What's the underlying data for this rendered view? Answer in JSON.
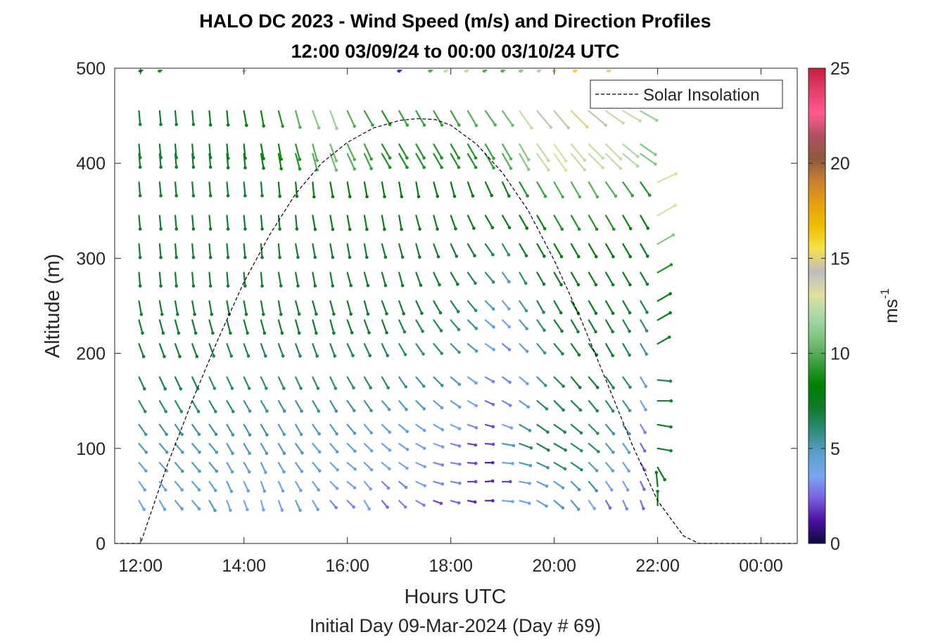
{
  "chart_data": {
    "type": "quiver",
    "title_line1": "HALO DC 2023 - Wind Speed (m/s) and Direction Profiles",
    "title_line2": "12:00 03/09/24 to 00:00 03/10/24  UTC",
    "xlabel": "Hours UTC",
    "ylabel": "Altitude (m)",
    "caption": "Initial Day 09-Mar-2024 (Day # 69)",
    "x_ticks": [
      "12:00",
      "14:00",
      "16:00",
      "18:00",
      "20:00",
      "22:00",
      "00:00"
    ],
    "x_tick_hours": [
      12,
      14,
      16,
      18,
      20,
      22,
      24
    ],
    "xlim": [
      11.5,
      24.7
    ],
    "ylim": [
      0,
      500
    ],
    "y_ticks": [
      "0",
      "100",
      "200",
      "300",
      "400",
      "500"
    ],
    "y_tick_values": [
      0,
      100,
      200,
      300,
      400,
      500
    ],
    "legend": {
      "entries": [
        "Solar Insolation"
      ],
      "location": "top-right"
    },
    "colorbar": {
      "label_base": "ms",
      "label_exp": "-1",
      "ticks": [
        "0",
        "5",
        "10",
        "15",
        "20",
        "25"
      ],
      "tick_values": [
        0,
        5,
        10,
        15,
        20,
        25
      ],
      "range": [
        0,
        25
      ],
      "colors": [
        "#0a0a40",
        "#4b0fa0",
        "#7b5fe0",
        "#7aa6f0",
        "#5a9ec8",
        "#2e8b7a",
        "#0f7a2a",
        "#008000",
        "#3aa040",
        "#7cc07c",
        "#a8d8a8",
        "#e0e0a0",
        "#bdbdbd",
        "#f5e050",
        "#f0c000",
        "#e8a010",
        "#c88030",
        "#8b5a3c",
        "#b05060",
        "#ff5a8c",
        "#e0406a",
        "#c81e3c"
      ]
    },
    "solar_insolation": {
      "x": [
        11.5,
        12.0,
        12.5,
        13.0,
        13.5,
        14.0,
        14.5,
        15.0,
        15.5,
        16.0,
        16.5,
        17.0,
        17.35,
        17.7,
        18.0,
        18.5,
        19.0,
        19.5,
        20.0,
        20.5,
        21.0,
        21.5,
        22.0,
        22.5,
        22.8,
        23.0,
        24.7
      ],
      "y": [
        0,
        0,
        80,
        150,
        215,
        275,
        325,
        368,
        400,
        422,
        437,
        445,
        447,
        446,
        440,
        420,
        390,
        350,
        298,
        238,
        172,
        105,
        45,
        8,
        0,
        0,
        0
      ]
    },
    "wind_columns": {
      "times": [
        11.97,
        12.37,
        12.67,
        13.0,
        13.33,
        13.67,
        14.0,
        14.33,
        14.67,
        15.0,
        15.33,
        15.67,
        16.0,
        16.33,
        16.67,
        17.0,
        17.33,
        17.67,
        18.0,
        18.33,
        18.67,
        19.0,
        19.33,
        19.67,
        20.0,
        20.33,
        20.67,
        21.0,
        21.33,
        21.67
      ],
      "altitudes": [
        45,
        65,
        85,
        105,
        125,
        150,
        175,
        210,
        235,
        255,
        285,
        315,
        345,
        380,
        410,
        420,
        455
      ],
      "wind_speed_by_altitude": [
        [
          4,
          4,
          4.5,
          4.5,
          5,
          4,
          3.5,
          3.5,
          4,
          4.5,
          4,
          3,
          3,
          3.5,
          2.5,
          3,
          3,
          2,
          2.5,
          1.5,
          1.5,
          4,
          4,
          4.5,
          5,
          5,
          3.5,
          2.5,
          3,
          2.5
        ],
        [
          4,
          4,
          4.5,
          4.5,
          4.5,
          4.5,
          4,
          4,
          4,
          4,
          4,
          3.5,
          3.5,
          3.5,
          3,
          3,
          3.5,
          3,
          3,
          2,
          1.5,
          2,
          4,
          4.5,
          4.5,
          5,
          5.5,
          4,
          3.5,
          2.5
        ],
        [
          4.5,
          4.5,
          5,
          5,
          5,
          4.5,
          4.5,
          4.5,
          4.5,
          4.5,
          4.5,
          4,
          4,
          4,
          3.5,
          3.5,
          3.5,
          3,
          3,
          2,
          1.5,
          4,
          5,
          5.5,
          6,
          6,
          5,
          4.5,
          4,
          2.5
        ],
        [
          5,
          5,
          5,
          5,
          5,
          5,
          5,
          5,
          5,
          5,
          4.5,
          4.5,
          4.5,
          4,
          4,
          4,
          3.5,
          3.5,
          3,
          2,
          2,
          5,
          6,
          6.5,
          6.5,
          6,
          6,
          5,
          4.5,
          2.5
        ],
        [
          5.5,
          5.5,
          5.5,
          5.5,
          5.5,
          5.5,
          5.5,
          5.5,
          5,
          5,
          5,
          5,
          5,
          4.5,
          4.5,
          4.5,
          4,
          4,
          3.5,
          3,
          2,
          3.5,
          5.5,
          6.5,
          6.5,
          6.5,
          6,
          5.5,
          5,
          3
        ],
        [
          6,
          6,
          6,
          6,
          6,
          6,
          5.5,
          5.5,
          5.5,
          5.5,
          5.5,
          5.5,
          5.5,
          5.5,
          5,
          5,
          5,
          4.5,
          4.5,
          3.5,
          2.5,
          3,
          4.5,
          6,
          6.5,
          6.5,
          6.5,
          6,
          5.5,
          4
        ],
        [
          6.5,
          6.5,
          6.5,
          6.5,
          6,
          6,
          6,
          6,
          6,
          6,
          6,
          6,
          6,
          6,
          6,
          5.5,
          5.5,
          5.5,
          5,
          4,
          3,
          3,
          4,
          5.5,
          6.5,
          7,
          7,
          6.5,
          6,
          4.5
        ],
        [
          7,
          7,
          7,
          7,
          6.5,
          6.5,
          6.5,
          6.5,
          6.5,
          6.5,
          6.5,
          6.5,
          6.5,
          6.5,
          6.5,
          6,
          6,
          6,
          5.5,
          5,
          4,
          3,
          4.5,
          5.5,
          6.5,
          7,
          7,
          7,
          6.5,
          5.5
        ],
        [
          7,
          7,
          7,
          7,
          7,
          7,
          7,
          7,
          7,
          7,
          7,
          7,
          7,
          7,
          7,
          6.5,
          6.5,
          6.5,
          6,
          5.5,
          4.5,
          3.5,
          5,
          6,
          7,
          7,
          7,
          7,
          6.5,
          6
        ],
        [
          7,
          7,
          7,
          7,
          7,
          7,
          7,
          7,
          7,
          7,
          7,
          7,
          7,
          7,
          7,
          7,
          7,
          7,
          6.5,
          6,
          5,
          4,
          5.5,
          6.5,
          7,
          7.5,
          7.5,
          7.5,
          7,
          6.5
        ],
        [
          7,
          7,
          7,
          7,
          7,
          7,
          7,
          7,
          7,
          7,
          7,
          7,
          7,
          7,
          7,
          7,
          7,
          7,
          7,
          6.5,
          6,
          5,
          6,
          7,
          7.5,
          7.5,
          7.5,
          7.5,
          7.5,
          7
        ],
        [
          7,
          7,
          7,
          7,
          7,
          7,
          7,
          7,
          7,
          7,
          7,
          7,
          7,
          7,
          7,
          7,
          7,
          7,
          7,
          7,
          6.5,
          6,
          7,
          7.5,
          8,
          8,
          8,
          8,
          8,
          7.5
        ],
        [
          7,
          7,
          7,
          7,
          7,
          7,
          7,
          7,
          7,
          7,
          7.5,
          7.5,
          7.5,
          7.5,
          7.5,
          7.5,
          7.5,
          7.5,
          7.5,
          7.5,
          7.5,
          7.5,
          8,
          8.5,
          9,
          9,
          9,
          9,
          8.5,
          8
        ],
        [
          7,
          7,
          7,
          7,
          7,
          7,
          7,
          7,
          7.5,
          7.5,
          8,
          8,
          8,
          8,
          8,
          8,
          8,
          8,
          8,
          8,
          8,
          8.5,
          9,
          9.5,
          10,
          10,
          10,
          10,
          9.5,
          9
        ],
        [
          7,
          7,
          7,
          7,
          7,
          7.5,
          7.5,
          8,
          8.5,
          9,
          10,
          10.5,
          10,
          9.5,
          9,
          9,
          9,
          9,
          9,
          9,
          9.5,
          10,
          11,
          12.5,
          13,
          13.5,
          12.5,
          13.5,
          12,
          11
        ],
        [
          7,
          7,
          7,
          7,
          7,
          7.5,
          7.5,
          8,
          8.5,
          9,
          10,
          10.5,
          10,
          9.5,
          9,
          9,
          9,
          9,
          9,
          9,
          9.5,
          10,
          11,
          12.5,
          13,
          13.5,
          12.5,
          13.5,
          12,
          11
        ],
        [
          7,
          7,
          7,
          7,
          7.5,
          7.5,
          8,
          8.5,
          9,
          10,
          11,
          11.5,
          10,
          9.5,
          9,
          9.5,
          9.5,
          9.5,
          9.5,
          10,
          10,
          10.5,
          13.5,
          14,
          14.5,
          15,
          14.5,
          13.5,
          12.5,
          11.5
        ]
      ],
      "wind_direction_deg_by_altitude": [
        [
          330,
          330,
          320,
          320,
          330,
          340,
          340,
          345,
          340,
          335,
          330,
          320,
          315,
          330,
          320,
          315,
          300,
          290,
          285,
          280,
          270,
          275,
          285,
          300,
          310,
          320,
          325,
          330,
          335,
          340
        ],
        [
          325,
          325,
          320,
          320,
          325,
          335,
          335,
          340,
          335,
          330,
          325,
          315,
          310,
          320,
          315,
          310,
          295,
          285,
          280,
          270,
          265,
          270,
          280,
          295,
          305,
          315,
          320,
          325,
          330,
          335
        ],
        [
          320,
          320,
          320,
          320,
          320,
          330,
          330,
          335,
          330,
          325,
          320,
          315,
          310,
          315,
          310,
          305,
          295,
          285,
          280,
          275,
          270,
          275,
          285,
          295,
          300,
          305,
          315,
          320,
          325,
          330
        ],
        [
          320,
          320,
          320,
          320,
          320,
          330,
          330,
          330,
          330,
          325,
          320,
          320,
          315,
          315,
          310,
          305,
          300,
          290,
          285,
          280,
          275,
          280,
          290,
          300,
          300,
          305,
          310,
          320,
          325,
          330
        ],
        [
          325,
          325,
          325,
          325,
          325,
          330,
          330,
          330,
          330,
          330,
          325,
          325,
          320,
          320,
          315,
          310,
          305,
          300,
          295,
          290,
          285,
          290,
          300,
          305,
          305,
          310,
          315,
          320,
          325,
          330
        ],
        [
          330,
          330,
          330,
          330,
          330,
          330,
          330,
          330,
          330,
          330,
          330,
          330,
          325,
          325,
          320,
          320,
          315,
          310,
          305,
          300,
          295,
          300,
          305,
          310,
          315,
          315,
          320,
          325,
          325,
          330
        ],
        [
          335,
          335,
          335,
          335,
          335,
          335,
          335,
          335,
          335,
          335,
          335,
          335,
          330,
          330,
          330,
          325,
          320,
          315,
          310,
          305,
          300,
          305,
          310,
          315,
          315,
          320,
          320,
          325,
          325,
          330
        ],
        [
          340,
          340,
          340,
          340,
          340,
          340,
          340,
          340,
          340,
          340,
          340,
          340,
          335,
          335,
          335,
          330,
          325,
          320,
          315,
          310,
          305,
          310,
          315,
          320,
          320,
          325,
          325,
          330,
          330,
          330
        ],
        [
          345,
          345,
          345,
          345,
          345,
          345,
          345,
          345,
          345,
          345,
          345,
          345,
          340,
          340,
          340,
          335,
          330,
          325,
          320,
          315,
          310,
          315,
          320,
          325,
          325,
          330,
          330,
          330,
          330,
          330
        ],
        [
          350,
          350,
          350,
          350,
          350,
          350,
          350,
          350,
          350,
          345,
          345,
          345,
          345,
          345,
          340,
          340,
          335,
          330,
          325,
          320,
          315,
          320,
          325,
          330,
          330,
          330,
          330,
          330,
          330,
          330
        ],
        [
          355,
          355,
          355,
          355,
          355,
          355,
          355,
          355,
          350,
          350,
          350,
          350,
          345,
          345,
          345,
          345,
          340,
          335,
          330,
          325,
          320,
          325,
          330,
          330,
          330,
          330,
          330,
          330,
          330,
          330
        ],
        [
          355,
          355,
          355,
          355,
          355,
          355,
          355,
          355,
          355,
          350,
          350,
          350,
          350,
          350,
          345,
          345,
          345,
          340,
          335,
          330,
          325,
          330,
          330,
          330,
          330,
          330,
          330,
          330,
          330,
          330
        ],
        [
          355,
          355,
          355,
          355,
          355,
          355,
          355,
          355,
          355,
          355,
          350,
          350,
          350,
          350,
          350,
          350,
          345,
          345,
          340,
          335,
          330,
          330,
          330,
          330,
          330,
          330,
          330,
          330,
          330,
          330
        ],
        [
          355,
          355,
          355,
          355,
          355,
          355,
          355,
          355,
          355,
          355,
          355,
          350,
          350,
          350,
          350,
          350,
          350,
          345,
          345,
          340,
          335,
          335,
          330,
          330,
          330,
          330,
          330,
          325,
          325,
          325
        ],
        [
          355,
          355,
          355,
          355,
          355,
          355,
          355,
          350,
          350,
          345,
          345,
          340,
          335,
          335,
          330,
          330,
          330,
          330,
          330,
          330,
          330,
          330,
          330,
          325,
          325,
          320,
          315,
          315,
          310,
          305
        ],
        [
          355,
          355,
          355,
          355,
          355,
          355,
          355,
          350,
          350,
          345,
          345,
          340,
          335,
          335,
          330,
          330,
          330,
          330,
          330,
          330,
          330,
          330,
          330,
          325,
          325,
          320,
          315,
          315,
          310,
          305
        ],
        [
          355,
          355,
          355,
          355,
          355,
          355,
          350,
          350,
          345,
          345,
          340,
          340,
          335,
          330,
          330,
          330,
          330,
          330,
          330,
          330,
          325,
          325,
          325,
          320,
          320,
          315,
          310,
          305,
          300,
          300
        ]
      ]
    },
    "wind_sparse_500m": {
      "times": [
        12.0,
        12.37,
        14.0,
        17.0,
        17.6,
        17.9,
        18.3,
        18.65,
        19.0,
        19.35,
        19.7,
        20.0,
        20.4,
        21.05
      ],
      "altitude": 497,
      "speeds": [
        7,
        9,
        14,
        1.5,
        10,
        12.5,
        13.5,
        10,
        10,
        11,
        12,
        15,
        16,
        15
      ]
    },
    "wind_late_column": {
      "time": 22.0,
      "altitudes": [
        40,
        60,
        80,
        100,
        125,
        150,
        172,
        210,
        235,
        255,
        285,
        315,
        345,
        380
      ],
      "speeds": [
        1.5,
        1.5,
        1.5,
        1,
        1,
        1,
        0.5,
        1,
        2,
        2,
        3,
        5,
        7,
        7
      ],
      "directions_deg": [
        180,
        175,
        330,
        280,
        280,
        270,
        275,
        240,
        240,
        240,
        240,
        240,
        240,
        245
      ]
    }
  }
}
